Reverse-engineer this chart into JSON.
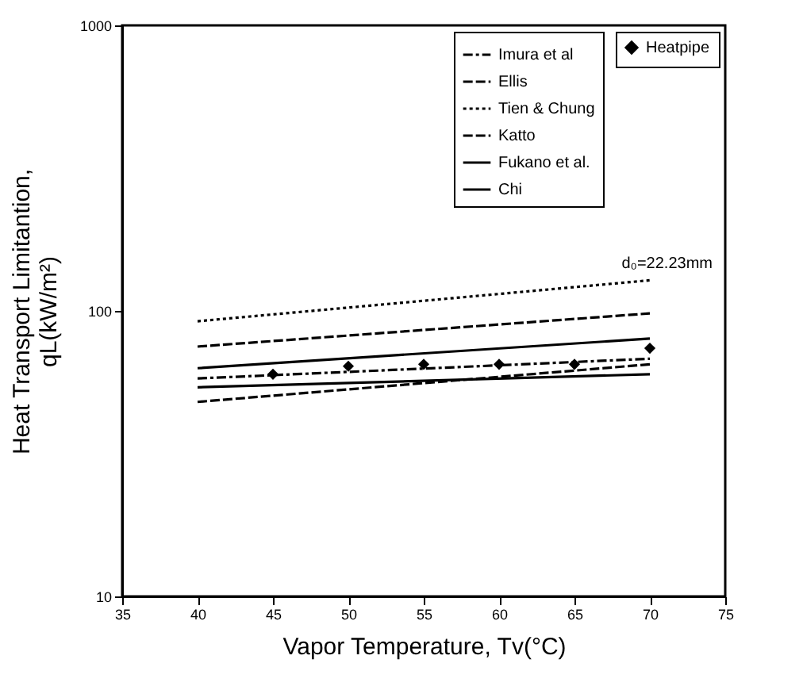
{
  "chart_data": {
    "type": "line",
    "xlabel": "Vapor Temperature, Tv(°C)",
    "ylabel": "Heat Transport Limitantion,\nqL(kW/m²)",
    "log": "y",
    "xlim": [
      35,
      75
    ],
    "xticks": [
      35,
      40,
      45,
      50,
      55,
      60,
      65,
      70,
      75
    ],
    "ylim": [
      10,
      1000
    ],
    "yticks": [
      10,
      100,
      1000
    ],
    "grid": false,
    "legend": "top right",
    "annotations": [
      "d₀=22.23mm"
    ],
    "series": [
      {
        "name": "Imura et al",
        "color": "#000000",
        "line_style": "dashdot",
        "x": [
          40,
          70
        ],
        "values": [
          58,
          68
        ]
      },
      {
        "name": "Ellis",
        "color": "#000000",
        "line_style": "dashed",
        "x": [
          40,
          70
        ],
        "values": [
          75,
          98
        ]
      },
      {
        "name": "Tien & Chung",
        "color": "#000000",
        "line_style": "dotted",
        "x": [
          40,
          70
        ],
        "values": [
          92,
          128
        ]
      },
      {
        "name": "Katto",
        "color": "#000000",
        "line_style": "dashed",
        "x": [
          40,
          70
        ],
        "values": [
          48,
          65
        ]
      },
      {
        "name": "Fukano et al.",
        "color": "#000000",
        "line_style": "solid",
        "x": [
          40,
          70
        ],
        "values": [
          54,
          60
        ]
      },
      {
        "name": "Chi",
        "color": "#000000",
        "line_style": "solid",
        "x": [
          40,
          70
        ],
        "values": [
          63,
          80
        ]
      },
      {
        "name": "Heatpipe",
        "type": "scatter",
        "marker": "diamond",
        "color": "#000000",
        "x": [
          45,
          50,
          55,
          60,
          65,
          70
        ],
        "values": [
          60,
          64,
          65,
          65,
          65,
          74
        ]
      }
    ]
  }
}
